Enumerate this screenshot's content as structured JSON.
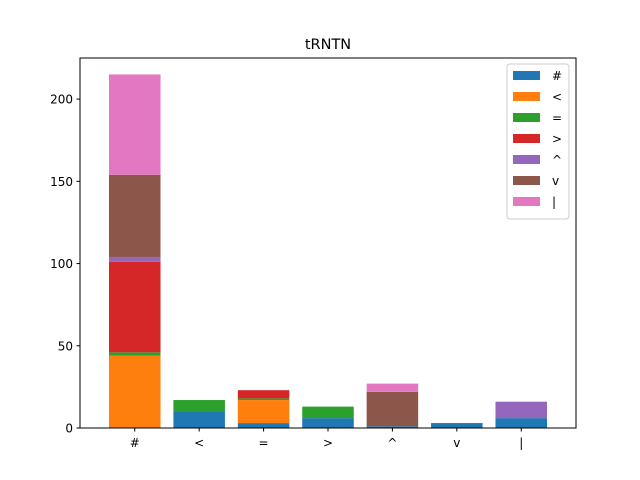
{
  "chart_data": {
    "type": "bar",
    "stacked": true,
    "title": "tRNTN",
    "xlabel": "",
    "ylabel": "",
    "categories": [
      "#",
      "<",
      "=",
      ">",
      "^",
      "v",
      "|"
    ],
    "ylim": [
      0,
      225
    ],
    "yticks": [
      0,
      50,
      100,
      150,
      200
    ],
    "grid": false,
    "legend_position": "top-right",
    "series": [
      {
        "name": "#",
        "color": "#1f77b4",
        "values": [
          0,
          10,
          3,
          6,
          1,
          3,
          6
        ]
      },
      {
        "name": "<",
        "color": "#ff7f0e",
        "values": [
          44,
          0,
          14,
          0,
          0,
          0,
          0
        ]
      },
      {
        "name": "=",
        "color": "#2ca02c",
        "values": [
          2,
          7,
          1,
          7,
          0,
          0,
          0
        ]
      },
      {
        "name": ">",
        "color": "#d62728",
        "values": [
          55,
          0,
          5,
          0,
          0,
          0,
          0
        ]
      },
      {
        "name": "^",
        "color": "#9467bd",
        "values": [
          3,
          0,
          0,
          0,
          0,
          0,
          10
        ]
      },
      {
        "name": "v",
        "color": "#8c564b",
        "values": [
          50,
          0,
          0,
          0,
          21,
          0,
          0
        ]
      },
      {
        "name": "|",
        "color": "#e377c2",
        "values": [
          61,
          0,
          0,
          0,
          5,
          0,
          0
        ]
      }
    ]
  }
}
